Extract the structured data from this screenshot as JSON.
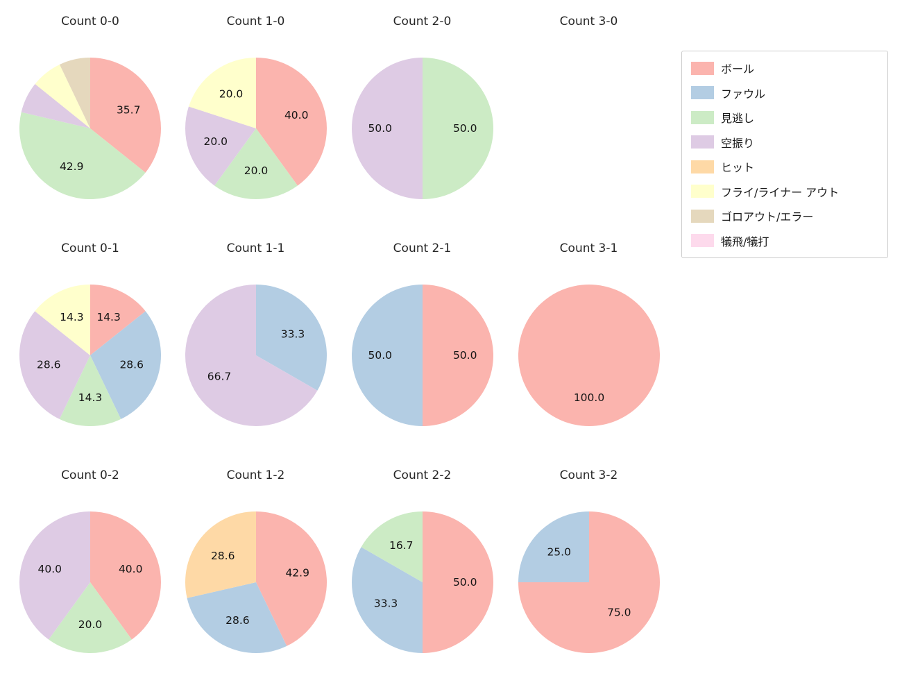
{
  "page": {
    "background_color": "#ffffff",
    "text_color": "#262626"
  },
  "legend": {
    "entries": [
      {
        "label": "ボール",
        "color": "#fbb4ae"
      },
      {
        "label": "ファウル",
        "color": "#b3cde3"
      },
      {
        "label": "見逃し",
        "color": "#ccebc5"
      },
      {
        "label": "空振り",
        "color": "#decbe4"
      },
      {
        "label": "ヒット",
        "color": "#fed9a6"
      },
      {
        "label": "フライ/ライナー アウト",
        "color": "#ffffcc"
      },
      {
        "label": "ゴロアウト/エラー",
        "color": "#e5d8bd"
      },
      {
        "label": "犠飛/犠打",
        "color": "#fddaec"
      }
    ]
  },
  "chart_data": [
    {
      "type": "pie",
      "title": "Count 0-0",
      "col": 0,
      "row": 0,
      "start_angle": 90,
      "direction": "clockwise",
      "legend_position": "upper right",
      "slices": [
        {
          "category": "ボール",
          "value": 35.7,
          "label": "35.7"
        },
        {
          "category": "見逃し",
          "value": 42.9,
          "label": "42.9"
        },
        {
          "category": "空振り",
          "value": 7.1,
          "label": ""
        },
        {
          "category": "フライ/ライナー アウト",
          "value": 7.1,
          "label": ""
        },
        {
          "category": "ゴロアウト/エラー",
          "value": 7.1,
          "label": ""
        }
      ]
    },
    {
      "type": "pie",
      "title": "Count 1-0",
      "col": 1,
      "row": 0,
      "start_angle": 90,
      "direction": "clockwise",
      "slices": [
        {
          "category": "ボール",
          "value": 40.0,
          "label": "40.0"
        },
        {
          "category": "見逃し",
          "value": 20.0,
          "label": "20.0"
        },
        {
          "category": "空振り",
          "value": 20.0,
          "label": "20.0"
        },
        {
          "category": "フライ/ライナー アウト",
          "value": 20.0,
          "label": "20.0"
        }
      ]
    },
    {
      "type": "pie",
      "title": "Count 2-0",
      "col": 2,
      "row": 0,
      "start_angle": 90,
      "direction": "clockwise",
      "slices": [
        {
          "category": "見逃し",
          "value": 50.0,
          "label": "50.0"
        },
        {
          "category": "空振り",
          "value": 50.0,
          "label": "50.0"
        }
      ]
    },
    {
      "type": "pie",
      "title": "Count 3-0",
      "col": 3,
      "row": 0,
      "start_angle": 90,
      "direction": "clockwise",
      "slices": []
    },
    {
      "type": "pie",
      "title": "Count 0-1",
      "col": 0,
      "row": 1,
      "start_angle": 90,
      "direction": "clockwise",
      "slices": [
        {
          "category": "ボール",
          "value": 14.3,
          "label": "14.3"
        },
        {
          "category": "ファウル",
          "value": 28.6,
          "label": "28.6"
        },
        {
          "category": "見逃し",
          "value": 14.3,
          "label": "14.3"
        },
        {
          "category": "空振り",
          "value": 28.6,
          "label": "28.6"
        },
        {
          "category": "フライ/ライナー アウト",
          "value": 14.3,
          "label": "14.3"
        }
      ]
    },
    {
      "type": "pie",
      "title": "Count 1-1",
      "col": 1,
      "row": 1,
      "start_angle": 90,
      "direction": "clockwise",
      "slices": [
        {
          "category": "ファウル",
          "value": 33.3,
          "label": "33.3"
        },
        {
          "category": "空振り",
          "value": 66.7,
          "label": "66.7"
        }
      ]
    },
    {
      "type": "pie",
      "title": "Count 2-1",
      "col": 2,
      "row": 1,
      "start_angle": 90,
      "direction": "clockwise",
      "slices": [
        {
          "category": "ボール",
          "value": 50.0,
          "label": "50.0"
        },
        {
          "category": "ファウル",
          "value": 50.0,
          "label": "50.0"
        }
      ]
    },
    {
      "type": "pie",
      "title": "Count 3-1",
      "col": 3,
      "row": 1,
      "start_angle": 90,
      "direction": "clockwise",
      "slices": [
        {
          "category": "ボール",
          "value": 100.0,
          "label": "100.0"
        }
      ]
    },
    {
      "type": "pie",
      "title": "Count 0-2",
      "col": 0,
      "row": 2,
      "start_angle": 90,
      "direction": "clockwise",
      "slices": [
        {
          "category": "ボール",
          "value": 40.0,
          "label": "40.0"
        },
        {
          "category": "見逃し",
          "value": 20.0,
          "label": "20.0"
        },
        {
          "category": "空振り",
          "value": 40.0,
          "label": "40.0"
        }
      ]
    },
    {
      "type": "pie",
      "title": "Count 1-2",
      "col": 1,
      "row": 2,
      "start_angle": 90,
      "direction": "clockwise",
      "slices": [
        {
          "category": "ボール",
          "value": 42.9,
          "label": "42.9"
        },
        {
          "category": "ファウル",
          "value": 28.6,
          "label": "28.6"
        },
        {
          "category": "ヒット",
          "value": 28.6,
          "label": "28.6"
        }
      ]
    },
    {
      "type": "pie",
      "title": "Count 2-2",
      "col": 2,
      "row": 2,
      "start_angle": 90,
      "direction": "clockwise",
      "slices": [
        {
          "category": "ボール",
          "value": 50.0,
          "label": "50.0"
        },
        {
          "category": "ファウル",
          "value": 33.3,
          "label": "33.3"
        },
        {
          "category": "見逃し",
          "value": 16.7,
          "label": "16.7"
        }
      ]
    },
    {
      "type": "pie",
      "title": "Count 3-2",
      "col": 3,
      "row": 2,
      "start_angle": 90,
      "direction": "clockwise",
      "slices": [
        {
          "category": "ボール",
          "value": 75.0,
          "label": "75.0"
        },
        {
          "category": "ファウル",
          "value": 25.0,
          "label": "25.0"
        }
      ]
    }
  ]
}
